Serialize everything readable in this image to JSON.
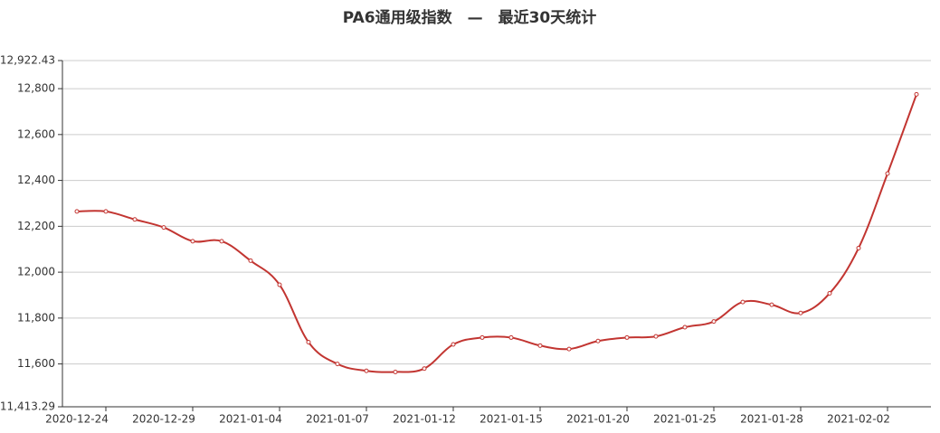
{
  "chart_data": {
    "type": "line",
    "title": "PA6通用级指数　—　最近30天统计",
    "categories": [
      "2020-12-24",
      null,
      null,
      "2020-12-29",
      null,
      null,
      "2021-01-04",
      null,
      null,
      "2021-01-07",
      null,
      null,
      "2021-01-12",
      null,
      null,
      "2021-01-15",
      null,
      null,
      "2021-01-20",
      null,
      null,
      "2021-01-25",
      null,
      null,
      "2021-01-28",
      null,
      null,
      "2021-02-02",
      null,
      null
    ],
    "series": [
      {
        "name": "PA6通用级指数",
        "color": "#c23531",
        "values": [
          12265,
          12265,
          12230,
          12195,
          12135,
          12135,
          12050,
          11945,
          11695,
          11600,
          11570,
          11565,
          11580,
          11685,
          11715,
          11715,
          11680,
          11665,
          11700,
          11715,
          11720,
          11760,
          11785,
          11870,
          11858,
          11822,
          11908,
          12105,
          12430,
          12775
        ]
      }
    ],
    "ylim": [
      11413.29,
      12922.43
    ],
    "yticks": [
      {
        "value": 11413.29,
        "label": "11,413.29"
      },
      {
        "value": 11600,
        "label": "11,600"
      },
      {
        "value": 11800,
        "label": "11,800"
      },
      {
        "value": 12000,
        "label": "12,000"
      },
      {
        "value": 12200,
        "label": "12,200"
      },
      {
        "value": 12400,
        "label": "12,400"
      },
      {
        "value": 12600,
        "label": "12,600"
      },
      {
        "value": 12800,
        "label": "12,800"
      },
      {
        "value": 12922.43,
        "label": "12,922.43"
      }
    ],
    "grid": true
  }
}
